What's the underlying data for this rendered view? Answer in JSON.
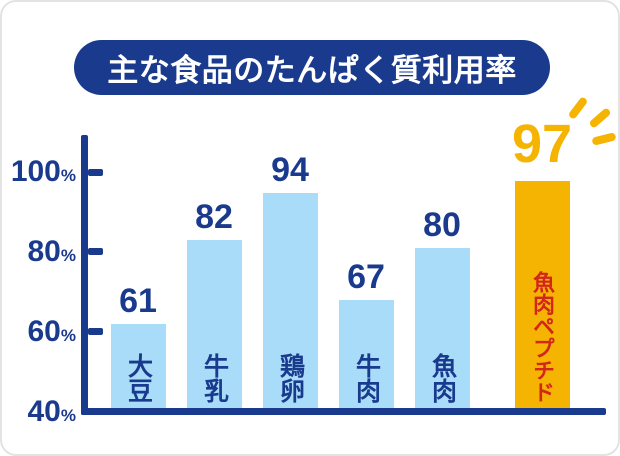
{
  "chart_data": {
    "type": "bar",
    "title": "主な食品のたんぱく質利用率",
    "categories": [
      "大豆",
      "牛乳",
      "鶏卵",
      "牛肉",
      "魚肉",
      "魚肉ペプチド"
    ],
    "values": [
      61,
      82,
      94,
      67,
      80,
      97
    ],
    "unit": "%",
    "xlabel": "",
    "ylabel": "",
    "ylim": [
      40,
      100
    ],
    "y_ticks": [
      100,
      80,
      60,
      40
    ],
    "y_tick_suffix": "%",
    "grid": false,
    "legend": "none",
    "highlight_index": 5,
    "annotations": [
      {
        "type": "sparkle-rays",
        "target_category": "魚肉ペプチド",
        "target_value": 97
      }
    ]
  },
  "colors": {
    "navy": "#1a3a8e",
    "bar_blue": "#a8dcf8",
    "bar_gold": "#f5b402",
    "label_red": "#d2261b",
    "title_text": "#ffffff",
    "card_bg": "#ffffff",
    "border_gray": "#e3e3e3"
  }
}
